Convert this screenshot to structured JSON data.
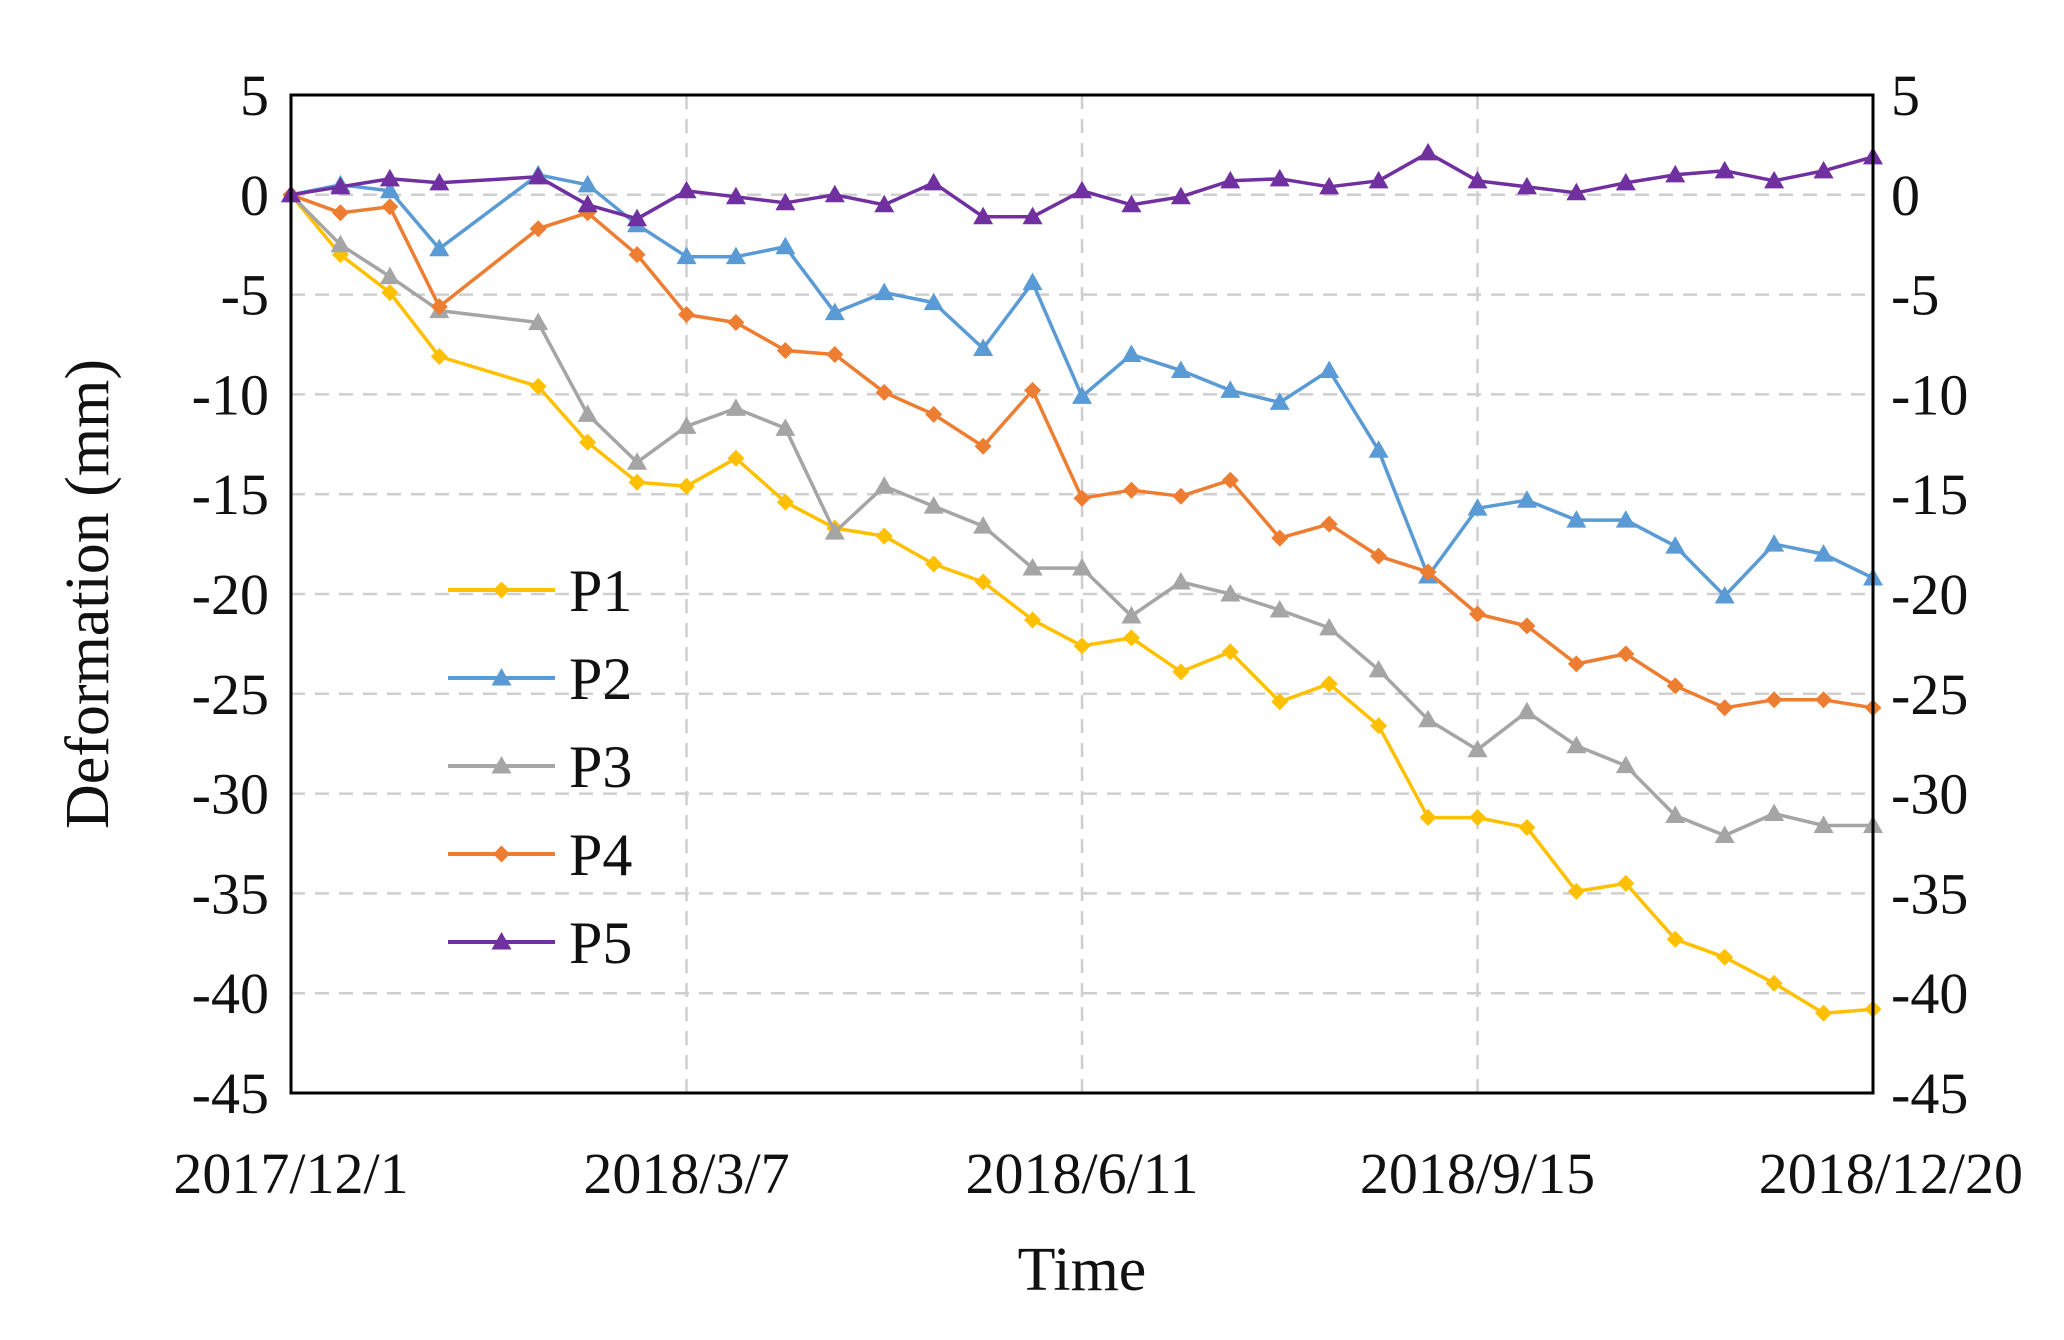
{
  "chart_data": {
    "type": "line",
    "title": "",
    "xlabel": "Time",
    "ylabel": "Deformation (mm)",
    "ylim": [
      -45,
      5
    ],
    "yticks": [
      "5",
      "0",
      "-5",
      "-10",
      "-15",
      "-20",
      "-25",
      "-30",
      "-35",
      "-40",
      "-45"
    ],
    "ytick_values": [
      5,
      0,
      -5,
      -10,
      -15,
      -20,
      -25,
      -30,
      -35,
      -40,
      -45
    ],
    "xlim_days": [
      0,
      384
    ],
    "xticks": [
      "2017/12/1",
      "2018/3/7",
      "2018/6/11",
      "2018/9/15",
      "2018/12/20"
    ],
    "xtick_days": [
      0,
      96,
      192,
      288,
      384
    ],
    "x_days": [
      0,
      12,
      24,
      36,
      60,
      72,
      84,
      96,
      108,
      120,
      132,
      144,
      156,
      168,
      180,
      192,
      204,
      216,
      228,
      240,
      252,
      264,
      276,
      288,
      300,
      312,
      324,
      336,
      348,
      360,
      372,
      384
    ],
    "grid": "dashed",
    "legend_position": "center-left",
    "series": [
      {
        "name": "P1",
        "color": "#FFC000",
        "marker": "diamond",
        "values": [
          0,
          -3.0,
          -4.9,
          -8.1,
          -9.6,
          -12.4,
          -14.4,
          -14.6,
          -13.2,
          -15.4,
          -16.7,
          -17.1,
          -18.5,
          -19.4,
          -21.3,
          -22.6,
          -22.2,
          -23.9,
          -22.9,
          -25.4,
          -24.5,
          -26.6,
          -31.2,
          -31.2,
          -31.7,
          -34.9,
          -34.5,
          -37.3,
          -38.2,
          -39.5,
          -41.0,
          -40.8
        ]
      },
      {
        "name": "P2",
        "color": "#5B9BD5",
        "marker": "triangle",
        "values": [
          0,
          0.5,
          0.2,
          -2.7,
          1.0,
          0.5,
          -1.5,
          -3.1,
          -3.1,
          -2.6,
          -5.9,
          -4.9,
          -5.4,
          -7.7,
          -4.4,
          -10.1,
          -8.0,
          -8.8,
          -9.8,
          -10.4,
          -8.8,
          -12.8,
          -19.1,
          -15.7,
          -15.3,
          -16.3,
          -16.3,
          -17.6,
          -20.1,
          -17.5,
          -18.0,
          -19.2
        ]
      },
      {
        "name": "P3",
        "color": "#A5A5A5",
        "marker": "triangle",
        "values": [
          0,
          -2.5,
          -4.1,
          -5.8,
          -6.4,
          -11.0,
          -13.4,
          -11.6,
          -10.7,
          -11.7,
          -16.9,
          -14.6,
          -15.6,
          -16.6,
          -18.7,
          -18.7,
          -21.1,
          -19.4,
          -20.0,
          -20.8,
          -21.7,
          -23.8,
          -26.3,
          -27.8,
          -25.9,
          -27.6,
          -28.6,
          -31.1,
          -32.1,
          -31.0,
          -31.6,
          -31.6
        ]
      },
      {
        "name": "P4",
        "color": "#ED7D31",
        "marker": "diamond",
        "values": [
          0,
          -0.9,
          -0.6,
          -5.6,
          -1.7,
          -0.9,
          -3.0,
          -6.0,
          -6.4,
          -7.8,
          -8.0,
          -9.9,
          -11.0,
          -12.6,
          -9.8,
          -15.2,
          -14.8,
          -15.1,
          -14.3,
          -17.2,
          -16.5,
          -18.1,
          -18.9,
          -21.0,
          -21.6,
          -23.5,
          -23.0,
          -24.6,
          -25.7,
          -25.3,
          -25.3,
          -25.7
        ]
      },
      {
        "name": "P5",
        "color": "#7030A0",
        "marker": "triangle",
        "values": [
          0,
          0.4,
          0.8,
          0.6,
          0.9,
          -0.5,
          -1.2,
          0.2,
          -0.1,
          -0.4,
          0.0,
          -0.5,
          0.6,
          -1.1,
          -1.1,
          0.2,
          -0.5,
          -0.1,
          0.7,
          0.8,
          0.4,
          0.7,
          2.1,
          0.7,
          0.4,
          0.1,
          0.6,
          1.0,
          1.2,
          0.7,
          1.2,
          1.9
        ]
      }
    ]
  }
}
